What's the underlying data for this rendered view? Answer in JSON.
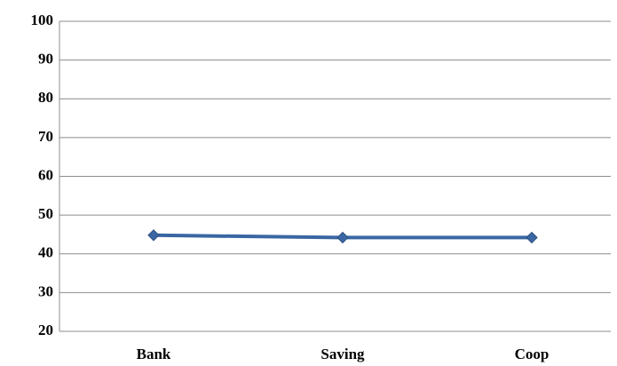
{
  "chart_data": {
    "type": "line",
    "categories": [
      "Bank",
      "Saving",
      "Coop"
    ],
    "series": [
      {
        "name": null,
        "color": "#3a67a3",
        "values": [
          44.8,
          44.2,
          44.2
        ]
      }
    ],
    "ylim": [
      20,
      100
    ],
    "yticks": [
      20,
      30,
      40,
      50,
      60,
      70,
      80,
      90,
      100
    ],
    "grid": true
  }
}
